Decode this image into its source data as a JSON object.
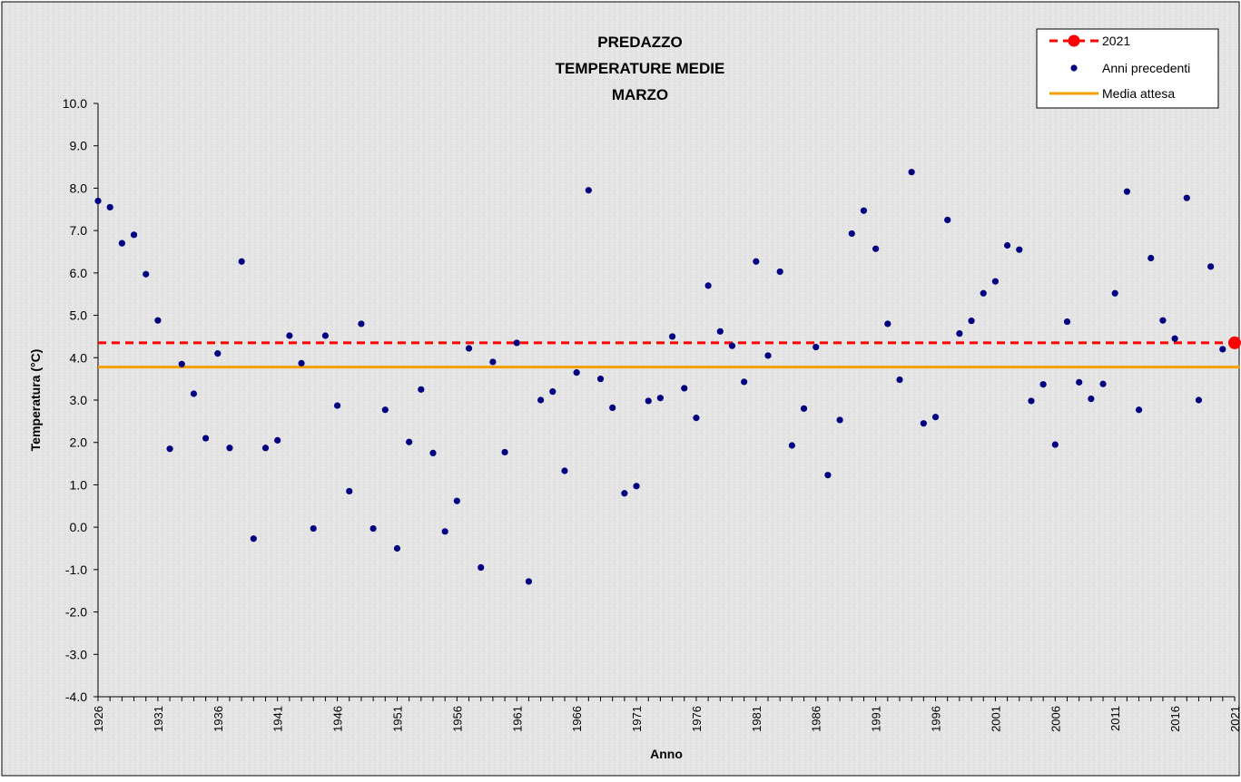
{
  "chart_data": {
    "type": "scatter",
    "title": [
      "PREDAZZO",
      "TEMPERATURE MEDIE",
      "MARZO"
    ],
    "xlabel": "Anno",
    "ylabel": "Temperatura (°C)",
    "xlim": [
      1926,
      2021
    ],
    "ylim": [
      -4.0,
      10.0
    ],
    "y_tick_step": 1.0,
    "x_tick_labels": [
      "1926",
      "1931",
      "1936",
      "1941",
      "1946",
      "1951",
      "1956",
      "1961",
      "1966",
      "1971",
      "1976",
      "1981",
      "1986",
      "1991",
      "1996",
      "2001",
      "2006",
      "2011",
      "2016",
      "2021"
    ],
    "legend_position": "top-right",
    "grid": false,
    "series": [
      {
        "name": "2021",
        "kind": "highlight",
        "color": "#ff0000",
        "points": [
          {
            "x": 2021,
            "y": 4.35
          }
        ],
        "reference_line": 4.35
      },
      {
        "name": "Anni precedenti",
        "kind": "scatter",
        "color": "#000080",
        "points": [
          {
            "x": 1926,
            "y": 7.7
          },
          {
            "x": 1927,
            "y": 7.55
          },
          {
            "x": 1928,
            "y": 6.7
          },
          {
            "x": 1929,
            "y": 6.9
          },
          {
            "x": 1930,
            "y": 5.97
          },
          {
            "x": 1931,
            "y": 4.88
          },
          {
            "x": 1932,
            "y": 1.85
          },
          {
            "x": 1933,
            "y": 3.85
          },
          {
            "x": 1934,
            "y": 3.15
          },
          {
            "x": 1935,
            "y": 2.1
          },
          {
            "x": 1936,
            "y": 4.1
          },
          {
            "x": 1937,
            "y": 1.87
          },
          {
            "x": 1938,
            "y": 6.27
          },
          {
            "x": 1939,
            "y": -0.27
          },
          {
            "x": 1940,
            "y": 1.87
          },
          {
            "x": 1941,
            "y": 2.05
          },
          {
            "x": 1942,
            "y": 4.52
          },
          {
            "x": 1943,
            "y": 3.87
          },
          {
            "x": 1944,
            "y": -0.03
          },
          {
            "x": 1945,
            "y": 4.52
          },
          {
            "x": 1946,
            "y": 2.87
          },
          {
            "x": 1947,
            "y": 0.85
          },
          {
            "x": 1948,
            "y": 4.8
          },
          {
            "x": 1949,
            "y": -0.03
          },
          {
            "x": 1950,
            "y": 2.77
          },
          {
            "x": 1951,
            "y": -0.5
          },
          {
            "x": 1952,
            "y": 2.01
          },
          {
            "x": 1953,
            "y": 3.25
          },
          {
            "x": 1954,
            "y": 1.75
          },
          {
            "x": 1955,
            "y": -0.1
          },
          {
            "x": 1956,
            "y": 0.62
          },
          {
            "x": 1957,
            "y": 4.22
          },
          {
            "x": 1958,
            "y": -0.95
          },
          {
            "x": 1959,
            "y": 3.9
          },
          {
            "x": 1960,
            "y": 1.77
          },
          {
            "x": 1961,
            "y": 4.35
          },
          {
            "x": 1962,
            "y": -1.28
          },
          {
            "x": 1963,
            "y": 3.0
          },
          {
            "x": 1964,
            "y": 3.2
          },
          {
            "x": 1965,
            "y": 1.33
          },
          {
            "x": 1966,
            "y": 3.65
          },
          {
            "x": 1967,
            "y": 7.95
          },
          {
            "x": 1968,
            "y": 3.5
          },
          {
            "x": 1969,
            "y": 2.82
          },
          {
            "x": 1970,
            "y": 0.8
          },
          {
            "x": 1971,
            "y": 0.97
          },
          {
            "x": 1972,
            "y": 2.98
          },
          {
            "x": 1973,
            "y": 3.05
          },
          {
            "x": 1974,
            "y": 4.5
          },
          {
            "x": 1975,
            "y": 3.28
          },
          {
            "x": 1976,
            "y": 2.58
          },
          {
            "x": 1977,
            "y": 5.7
          },
          {
            "x": 1978,
            "y": 4.62
          },
          {
            "x": 1979,
            "y": 4.28
          },
          {
            "x": 1980,
            "y": 3.43
          },
          {
            "x": 1981,
            "y": 6.27
          },
          {
            "x": 1982,
            "y": 4.05
          },
          {
            "x": 1983,
            "y": 6.03
          },
          {
            "x": 1984,
            "y": 1.93
          },
          {
            "x": 1985,
            "y": 2.8
          },
          {
            "x": 1986,
            "y": 4.25
          },
          {
            "x": 1987,
            "y": 1.23
          },
          {
            "x": 1988,
            "y": 2.53
          },
          {
            "x": 1989,
            "y": 6.93
          },
          {
            "x": 1990,
            "y": 7.47
          },
          {
            "x": 1991,
            "y": 6.57
          },
          {
            "x": 1992,
            "y": 4.8
          },
          {
            "x": 1993,
            "y": 3.48
          },
          {
            "x": 1994,
            "y": 8.38
          },
          {
            "x": 1995,
            "y": 2.45
          },
          {
            "x": 1996,
            "y": 2.6
          },
          {
            "x": 1997,
            "y": 7.25
          },
          {
            "x": 1998,
            "y": 4.57
          },
          {
            "x": 1999,
            "y": 4.87
          },
          {
            "x": 2000,
            "y": 5.52
          },
          {
            "x": 2001,
            "y": 5.8
          },
          {
            "x": 2002,
            "y": 6.65
          },
          {
            "x": 2003,
            "y": 6.55
          },
          {
            "x": 2004,
            "y": 2.98
          },
          {
            "x": 2005,
            "y": 3.37
          },
          {
            "x": 2006,
            "y": 1.95
          },
          {
            "x": 2007,
            "y": 4.85
          },
          {
            "x": 2008,
            "y": 3.42
          },
          {
            "x": 2009,
            "y": 3.03
          },
          {
            "x": 2010,
            "y": 3.38
          },
          {
            "x": 2011,
            "y": 5.52
          },
          {
            "x": 2012,
            "y": 7.92
          },
          {
            "x": 2013,
            "y": 2.77
          },
          {
            "x": 2014,
            "y": 6.35
          },
          {
            "x": 2015,
            "y": 4.88
          },
          {
            "x": 2016,
            "y": 4.45
          },
          {
            "x": 2017,
            "y": 7.77
          },
          {
            "x": 2018,
            "y": 3.0
          },
          {
            "x": 2019,
            "y": 6.15
          },
          {
            "x": 2020,
            "y": 4.2
          }
        ]
      },
      {
        "name": "Media attesa",
        "kind": "hline",
        "color": "#f5a000",
        "value": 3.78
      }
    ]
  }
}
